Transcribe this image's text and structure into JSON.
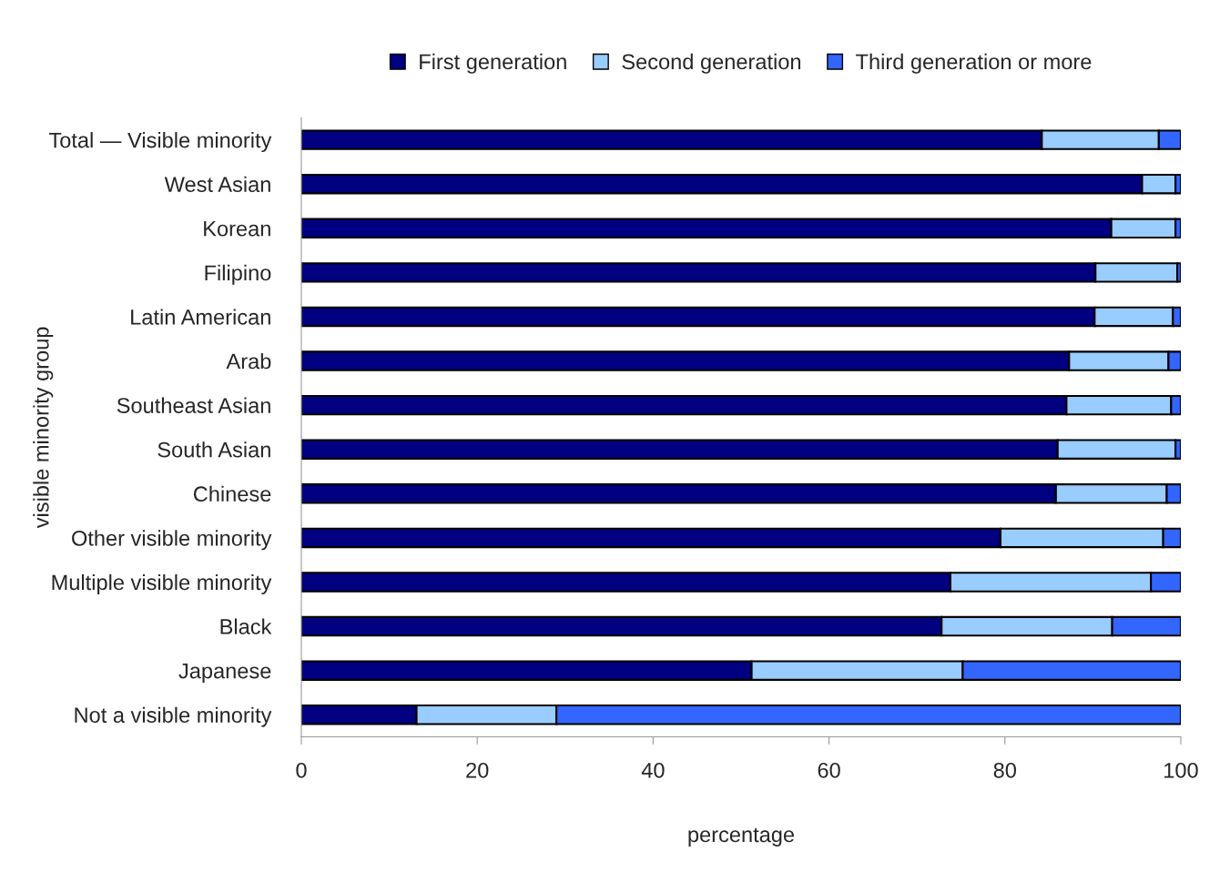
{
  "chart_data": {
    "type": "bar",
    "orientation": "horizontal",
    "stacked": true,
    "xlabel": "percentage",
    "ylabel": "visible minority group",
    "categories": [
      "Total — Visible minority",
      "West Asian",
      "Korean",
      "Filipino",
      "Latin American",
      "Arab",
      "Southeast Asian",
      "South Asian",
      "Chinese",
      "Other visible minority",
      "Multiple visible minority",
      "Black",
      "Japanese",
      "Not a visible minority"
    ],
    "series": [
      {
        "name": "First generation",
        "color": "#000080",
        "values": [
          84.2,
          95.6,
          92.1,
          90.3,
          90.2,
          87.3,
          87.0,
          86.0,
          85.8,
          79.5,
          73.8,
          72.8,
          51.2,
          13.1
        ]
      },
      {
        "name": "Second generation",
        "color": "#99ccff",
        "values": [
          13.3,
          3.8,
          7.3,
          9.3,
          8.9,
          11.3,
          11.9,
          13.4,
          12.6,
          18.5,
          22.8,
          19.4,
          24.0,
          15.9
        ]
      },
      {
        "name": "Third generation or more",
        "color": "#3366ff",
        "values": [
          2.5,
          0.6,
          0.6,
          0.4,
          0.9,
          1.4,
          1.1,
          0.6,
          1.6,
          2.0,
          3.4,
          7.8,
          24.8,
          71.0
        ]
      }
    ],
    "xlim": [
      0,
      100
    ],
    "xticks": [
      0,
      20,
      40,
      60,
      80,
      100
    ],
    "grid": false,
    "legend": "top"
  }
}
